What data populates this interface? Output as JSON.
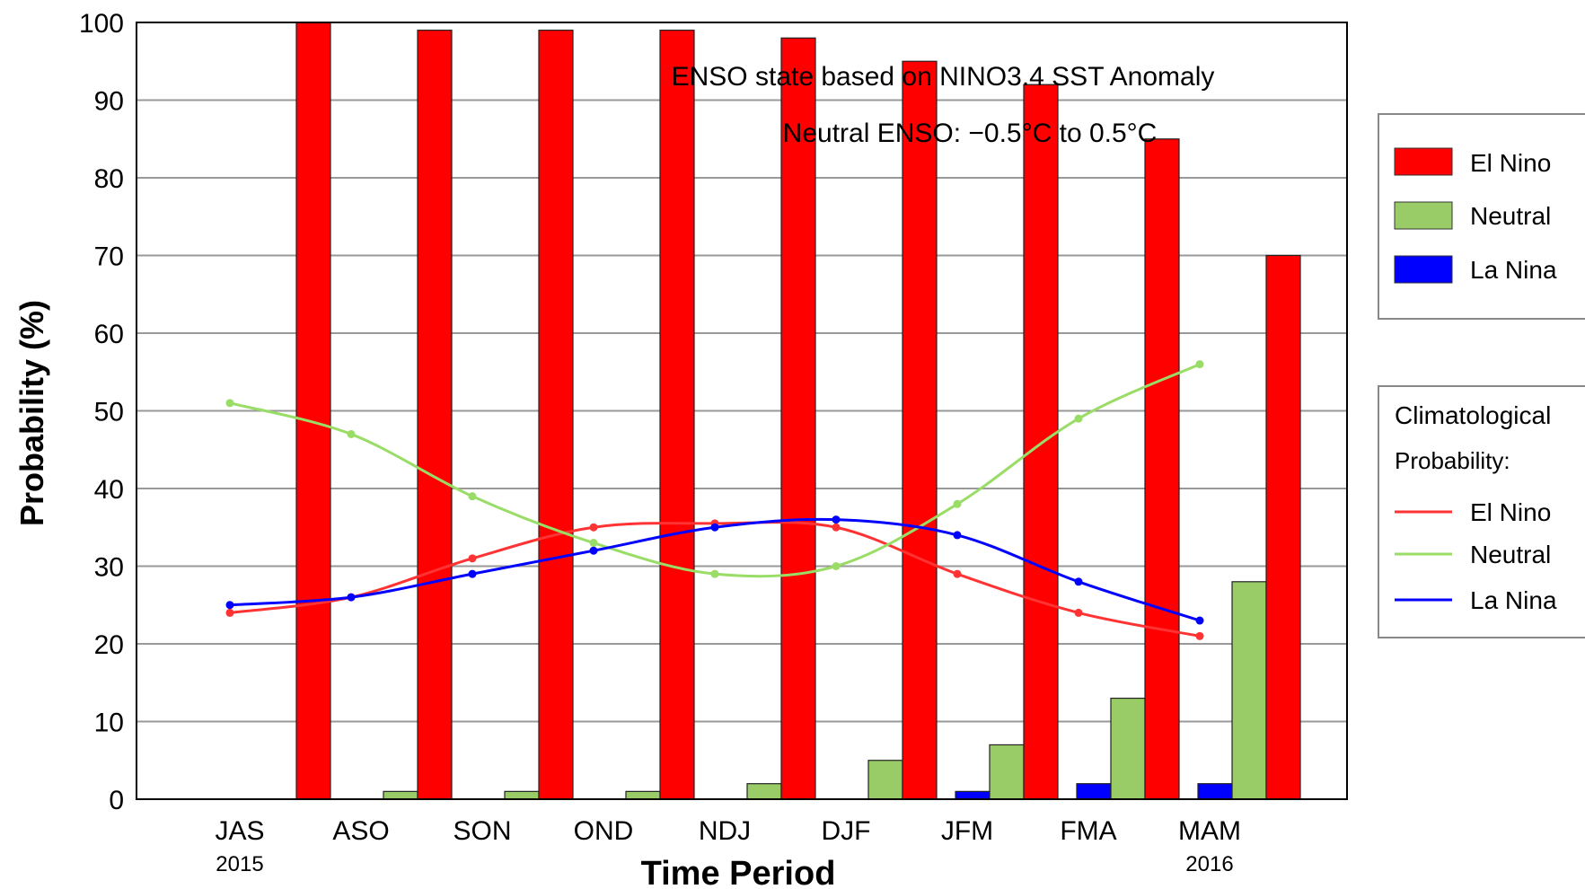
{
  "chart_data": {
    "type": "bar",
    "title_lines": [
      "ENSO state based on NINO3.4 SST Anomaly",
      "Neutral ENSO: −0.5°C to 0.5°C"
    ],
    "xlabel": "Time Period",
    "ylabel": "Probability (%)",
    "ylim": [
      0,
      100
    ],
    "yticks": [
      0,
      10,
      20,
      30,
      40,
      50,
      60,
      70,
      80,
      90,
      100
    ],
    "grid": true,
    "categories": [
      "JAS",
      "ASO",
      "SON",
      "OND",
      "NDJ",
      "DJF",
      "JFM",
      "FMA",
      "MAM"
    ],
    "year_labels": [
      {
        "category": "JAS",
        "text": "2015"
      },
      {
        "category": "MAM",
        "text": "2016"
      }
    ],
    "series": [
      {
        "name": "La Nina",
        "color": "#0000ff",
        "values": [
          0,
          0,
          0,
          0,
          0,
          0,
          1,
          2,
          2
        ]
      },
      {
        "name": "Neutral",
        "color": "#99cc66",
        "values": [
          0,
          1,
          1,
          1,
          2,
          5,
          7,
          13,
          28
        ]
      },
      {
        "name": "El Nino",
        "color": "#ff0000",
        "values": [
          100,
          99,
          99,
          99,
          98,
          95,
          92,
          85,
          70
        ]
      }
    ],
    "climatological": {
      "title": "Climatological Probability:",
      "series": [
        {
          "name": "El Nino",
          "color": "#ff3333",
          "values": [
            24,
            26,
            31,
            35,
            35.5,
            35,
            29,
            24,
            21
          ]
        },
        {
          "name": "Neutral",
          "color": "#99dd66",
          "values": [
            51,
            47,
            39,
            33,
            29,
            30,
            38,
            49,
            56
          ]
        },
        {
          "name": "La Nina",
          "color": "#0000ff",
          "values": [
            25,
            26,
            29,
            32,
            35,
            36,
            34,
            28,
            23
          ]
        }
      ]
    },
    "legend_position": "right"
  }
}
